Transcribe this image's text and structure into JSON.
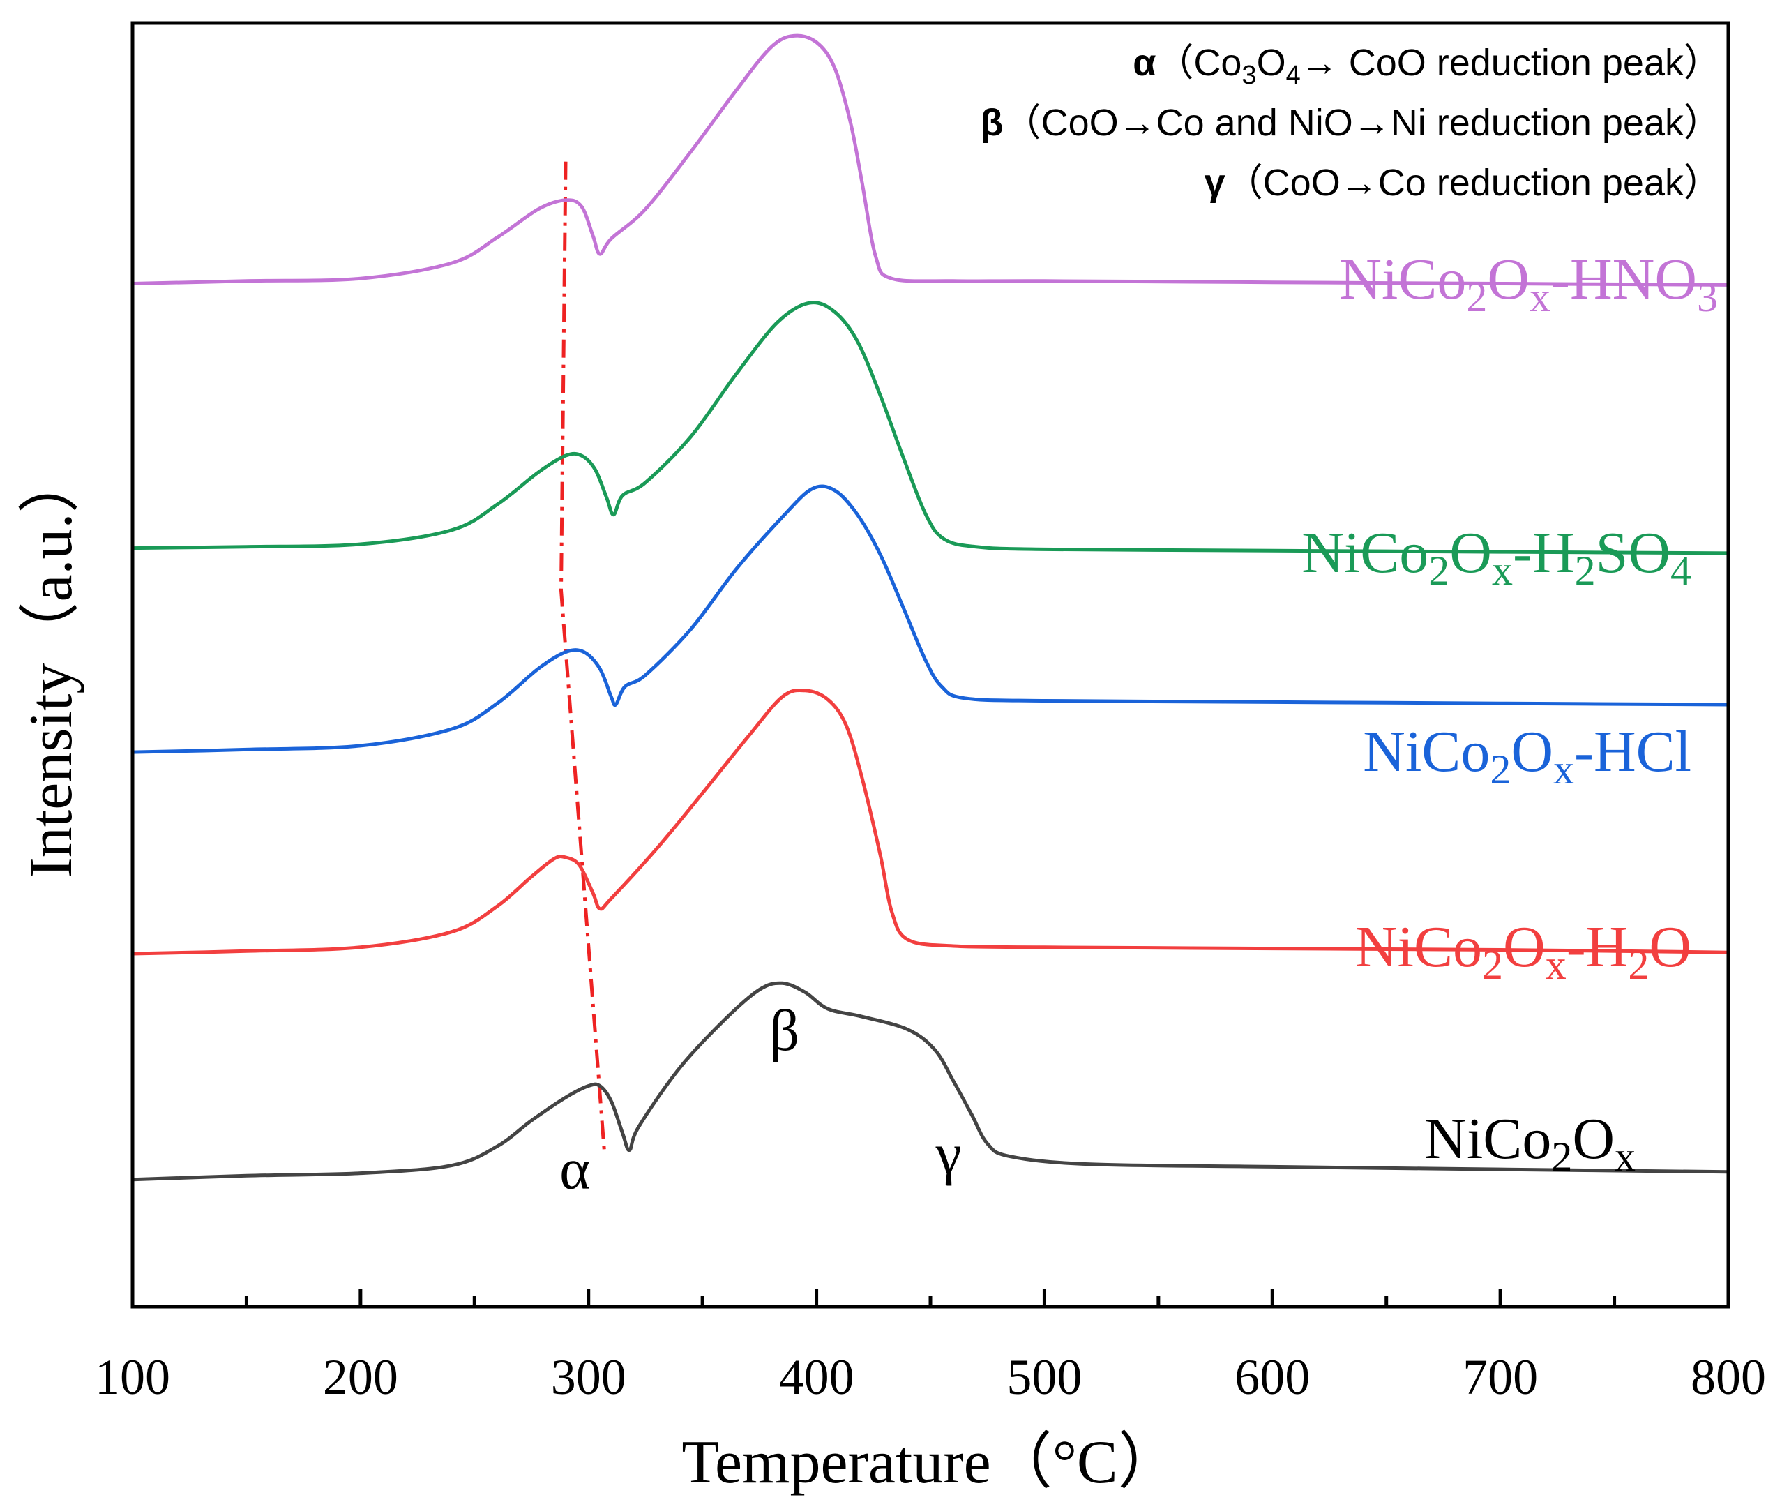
{
  "chart_data": {
    "type": "line",
    "title": "",
    "xlabel": "Temperature（°C）",
    "ylabel": "Intensity（a.u.）",
    "xlim": [
      100,
      800
    ],
    "ylim": [
      0,
      1
    ],
    "x_ticks": [
      "100",
      "200",
      "300",
      "400",
      "500",
      "600",
      "700",
      "800"
    ],
    "y_ticks_shown": false,
    "grid": false,
    "legend": {
      "placement": "top-right",
      "items": [
        {
          "symbol": "α",
          "text": "（Co3O4→ CoO reduction peak）",
          "symbol_weight": "bold"
        },
        {
          "symbol": "β",
          "text": "（CoO→Co and NiO→Ni reduction peak）",
          "symbol_weight": "bold"
        },
        {
          "symbol": "γ",
          "text": "（CoO→Co reduction peak）",
          "symbol_weight": "bold"
        }
      ]
    },
    "peak_labels": [
      {
        "text": "α",
        "x": 294,
        "y": 0.092
      },
      {
        "text": "β",
        "x": 386,
        "y": 0.2
      },
      {
        "text": "γ",
        "x": 458,
        "y": 0.104
      }
    ],
    "guide_line": {
      "style": "dash-dot",
      "color": "#ee2222",
      "points": [
        [
          290,
          0.892
        ],
        [
          288,
          0.558
        ],
        [
          307,
          0.12
        ]
      ]
    },
    "series": [
      {
        "name": "NiCo2Ox",
        "color": "#444444",
        "label_parts": [
          [
            "Ni",
            "normal"
          ],
          [
            "Co",
            "normal"
          ],
          [
            "2",
            "sub"
          ],
          [
            "O",
            "normal"
          ],
          [
            "x",
            "sub"
          ]
        ],
        "points": [
          [
            100,
            0.099
          ],
          [
            150,
            0.102
          ],
          [
            200,
            0.104
          ],
          [
            240,
            0.11
          ],
          [
            260,
            0.125
          ],
          [
            275,
            0.145
          ],
          [
            290,
            0.163
          ],
          [
            300,
            0.172
          ],
          [
            305,
            0.172
          ],
          [
            310,
            0.16
          ],
          [
            315,
            0.135
          ],
          [
            318,
            0.122
          ],
          [
            322,
            0.14
          ],
          [
            340,
            0.186
          ],
          [
            360,
            0.224
          ],
          [
            375,
            0.247
          ],
          [
            385,
            0.252
          ],
          [
            395,
            0.245
          ],
          [
            405,
            0.232
          ],
          [
            420,
            0.226
          ],
          [
            440,
            0.216
          ],
          [
            452,
            0.2
          ],
          [
            460,
            0.176
          ],
          [
            468,
            0.15
          ],
          [
            475,
            0.127
          ],
          [
            485,
            0.117
          ],
          [
            520,
            0.111
          ],
          [
            600,
            0.109
          ],
          [
            700,
            0.107
          ],
          [
            800,
            0.105
          ]
        ]
      },
      {
        "name": "NiCo2Ox-H2O",
        "color": "#f23f3f",
        "label_parts": [
          [
            "NiCo",
            "normal"
          ],
          [
            "2",
            "sub"
          ],
          [
            "O",
            "normal"
          ],
          [
            "x",
            "sub"
          ],
          [
            "-H",
            "normal"
          ],
          [
            "2",
            "sub"
          ],
          [
            "O",
            "normal"
          ]
        ],
        "points": [
          [
            100,
            0.275
          ],
          [
            150,
            0.277
          ],
          [
            200,
            0.28
          ],
          [
            240,
            0.292
          ],
          [
            260,
            0.312
          ],
          [
            275,
            0.335
          ],
          [
            285,
            0.349
          ],
          [
            290,
            0.35
          ],
          [
            296,
            0.344
          ],
          [
            302,
            0.322
          ],
          [
            305,
            0.31
          ],
          [
            310,
            0.318
          ],
          [
            330,
            0.357
          ],
          [
            350,
            0.4
          ],
          [
            370,
            0.444
          ],
          [
            385,
            0.475
          ],
          [
            395,
            0.48
          ],
          [
            405,
            0.473
          ],
          [
            413,
            0.453
          ],
          [
            420,
            0.412
          ],
          [
            428,
            0.352
          ],
          [
            433,
            0.308
          ],
          [
            440,
            0.286
          ],
          [
            460,
            0.281
          ],
          [
            500,
            0.28
          ],
          [
            600,
            0.279
          ],
          [
            700,
            0.278
          ],
          [
            800,
            0.276
          ]
        ]
      },
      {
        "name": "NiCo2Ox-HCl",
        "color": "#1a63d9",
        "label_parts": [
          [
            "NiCo",
            "normal"
          ],
          [
            "2",
            "sub"
          ],
          [
            "O",
            "normal"
          ],
          [
            "x",
            "sub"
          ],
          [
            "-HCl",
            "normal"
          ]
        ],
        "points": [
          [
            100,
            0.432
          ],
          [
            150,
            0.434
          ],
          [
            200,
            0.437
          ],
          [
            240,
            0.45
          ],
          [
            260,
            0.47
          ],
          [
            278,
            0.497
          ],
          [
            290,
            0.51
          ],
          [
            298,
            0.51
          ],
          [
            305,
            0.497
          ],
          [
            310,
            0.475
          ],
          [
            312,
            0.469
          ],
          [
            316,
            0.483
          ],
          [
            325,
            0.492
          ],
          [
            345,
            0.528
          ],
          [
            365,
            0.575
          ],
          [
            385,
            0.615
          ],
          [
            398,
            0.637
          ],
          [
            408,
            0.636
          ],
          [
            418,
            0.617
          ],
          [
            428,
            0.586
          ],
          [
            438,
            0.545
          ],
          [
            448,
            0.503
          ],
          [
            455,
            0.483
          ],
          [
            465,
            0.474
          ],
          [
            500,
            0.472
          ],
          [
            600,
            0.471
          ],
          [
            700,
            0.47
          ],
          [
            800,
            0.469
          ]
        ]
      },
      {
        "name": "NiCo2Ox-H2SO4",
        "color": "#1a9a57",
        "label_parts": [
          [
            "NiCo",
            "normal"
          ],
          [
            "2",
            "sub"
          ],
          [
            "O",
            "normal"
          ],
          [
            "x",
            "sub"
          ],
          [
            "-H",
            "normal"
          ],
          [
            "2",
            "sub"
          ],
          [
            "SO",
            "normal"
          ],
          [
            "4",
            "sub"
          ]
        ],
        "points": [
          [
            100,
            0.591
          ],
          [
            150,
            0.592
          ],
          [
            200,
            0.594
          ],
          [
            240,
            0.605
          ],
          [
            260,
            0.625
          ],
          [
            278,
            0.65
          ],
          [
            290,
            0.663
          ],
          [
            297,
            0.663
          ],
          [
            303,
            0.652
          ],
          [
            308,
            0.63
          ],
          [
            311,
            0.617
          ],
          [
            315,
            0.632
          ],
          [
            325,
            0.642
          ],
          [
            345,
            0.678
          ],
          [
            365,
            0.727
          ],
          [
            383,
            0.767
          ],
          [
            397,
            0.782
          ],
          [
            408,
            0.775
          ],
          [
            418,
            0.752
          ],
          [
            428,
            0.71
          ],
          [
            438,
            0.662
          ],
          [
            448,
            0.617
          ],
          [
            456,
            0.598
          ],
          [
            470,
            0.592
          ],
          [
            500,
            0.59
          ],
          [
            600,
            0.589
          ],
          [
            700,
            0.588
          ],
          [
            800,
            0.587
          ]
        ]
      },
      {
        "name": "NiCo2Ox-HNO3",
        "color": "#c374d6",
        "label_parts": [
          [
            "NiCo",
            "normal"
          ],
          [
            "2",
            "sub"
          ],
          [
            "O",
            "normal"
          ],
          [
            "x",
            "sub"
          ],
          [
            "-HNO",
            "normal"
          ],
          [
            "3",
            "sub"
          ]
        ],
        "points": [
          [
            100,
            0.797
          ],
          [
            150,
            0.799
          ],
          [
            200,
            0.801
          ],
          [
            240,
            0.813
          ],
          [
            260,
            0.833
          ],
          [
            278,
            0.855
          ],
          [
            290,
            0.862
          ],
          [
            297,
            0.857
          ],
          [
            302,
            0.834
          ],
          [
            305,
            0.82
          ],
          [
            310,
            0.832
          ],
          [
            325,
            0.855
          ],
          [
            345,
            0.9
          ],
          [
            365,
            0.948
          ],
          [
            380,
            0.981
          ],
          [
            390,
            0.99
          ],
          [
            400,
            0.985
          ],
          [
            408,
            0.965
          ],
          [
            415,
            0.922
          ],
          [
            420,
            0.876
          ],
          [
            426,
            0.818
          ],
          [
            433,
            0.801
          ],
          [
            460,
            0.799
          ],
          [
            500,
            0.799
          ],
          [
            600,
            0.798
          ],
          [
            700,
            0.797
          ],
          [
            800,
            0.796
          ]
        ]
      }
    ]
  }
}
